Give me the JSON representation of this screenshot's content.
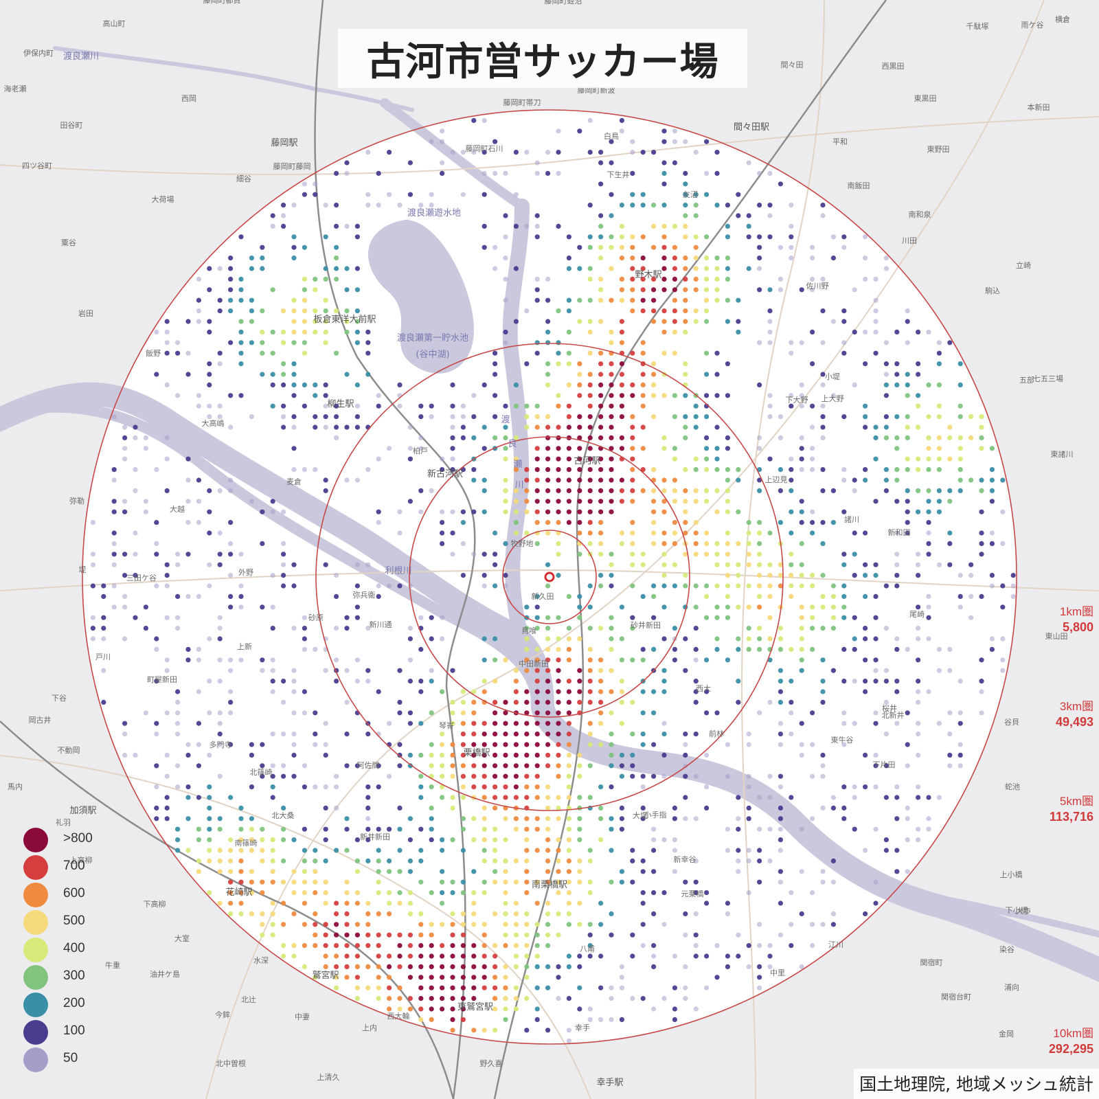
{
  "title": "古河市営サッカー場",
  "attribution": "国土地理院, 地域メッシュ統計",
  "legend": {
    "items": [
      {
        "label": ">800",
        "color": "#8b0a3c"
      },
      {
        "label": "700",
        "color": "#d53e3e"
      },
      {
        "label": "600",
        "color": "#f08a3e"
      },
      {
        "label": "500",
        "color": "#f5d97a"
      },
      {
        "label": "400",
        "color": "#d6ea7a"
      },
      {
        "label": "300",
        "color": "#80c47f"
      },
      {
        "label": "200",
        "color": "#3a8fa7"
      },
      {
        "label": "100",
        "color": "#4a3d8f"
      },
      {
        "label": "50",
        "color": "#a49ec8"
      }
    ]
  },
  "rings": [
    {
      "name": "1km圏",
      "population": "5,800"
    },
    {
      "name": "3km圏",
      "population": "49,493"
    },
    {
      "name": "5km圏",
      "population": "113,716"
    },
    {
      "name": "10km圏",
      "population": "292,295"
    }
  ],
  "stations": [
    "古河駅",
    "新古河駅",
    "野木駅",
    "栗橋駅",
    "南栗橋駅",
    "東鷲宮駅",
    "鷲宮駅",
    "花崎駅",
    "柳生駅",
    "板倉東洋大前駅",
    "藤岡駅",
    "間々田駅",
    "加須駅",
    "幸手駅"
  ],
  "water_labels": [
    "渡良瀬川",
    "渡良瀬遊水地",
    "渡良瀬第一貯水池",
    "(谷中湖)",
    "利根川",
    "渡",
    "良",
    "瀬",
    "川"
  ],
  "place_labels": [
    "牧野地",
    "新久田",
    "鳥喰",
    "砂井新田",
    "中田新田",
    "弥兵衛",
    "新川通",
    "砂原",
    "上新",
    "大越",
    "麦倉",
    "外野",
    "三田ケ谷",
    "町屋新田",
    "北篠崎",
    "阿佐間",
    "多門寺",
    "琴寄",
    "北大桑",
    "新井新田",
    "南篠崎",
    "幸手",
    "上高柳",
    "下高柳",
    "大室",
    "水深",
    "北中曽根",
    "野久喜",
    "上清久",
    "今鉾",
    "中妻",
    "西大輪",
    "上内",
    "佐川野",
    "平和",
    "南飯田",
    "西黒田",
    "東黒田",
    "東野田",
    "南和泉",
    "川田",
    "駒込",
    "七五三場",
    "五部",
    "東諸川",
    "新和田",
    "尾崎",
    "東山田",
    "谷貝",
    "蛇池",
    "上小橋",
    "下小橋",
    "大歩",
    "染谷",
    "浦向",
    "関宿町",
    "関宿台町",
    "金岡",
    "江川",
    "中里",
    "東牛谷",
    "前林",
    "大堤",
    "小手指",
    "新幸谷",
    "元栗橋",
    "八甫",
    "柏戸",
    "西大",
    "小堤",
    "上大野",
    "下大野",
    "上辺見",
    "諸川",
    "桜井",
    "北新井",
    "下片田",
    "大荷場",
    "田谷町",
    "伊保内町",
    "高山町",
    "西岡",
    "四ツ谷町",
    "細谷",
    "粟谷",
    "岩田",
    "飯野",
    "大高嶋",
    "弥勒",
    "堤",
    "戸川",
    "下谷",
    "岡古井",
    "不動岡",
    "馬内",
    "礼羽",
    "油井ケ島",
    "北辻",
    "牛重",
    "千駄塚",
    "雨ケ谷",
    "横倉",
    "白鳥",
    "下生井",
    "友沼",
    "間々田",
    "藤岡町都賀",
    "藤岡町蛭沼",
    "藤岡町帯刀",
    "藤岡町石川",
    "藤岡町新波",
    "藤岡町藤岡",
    "海老瀬",
    "本新田",
    "立崎"
  ]
}
